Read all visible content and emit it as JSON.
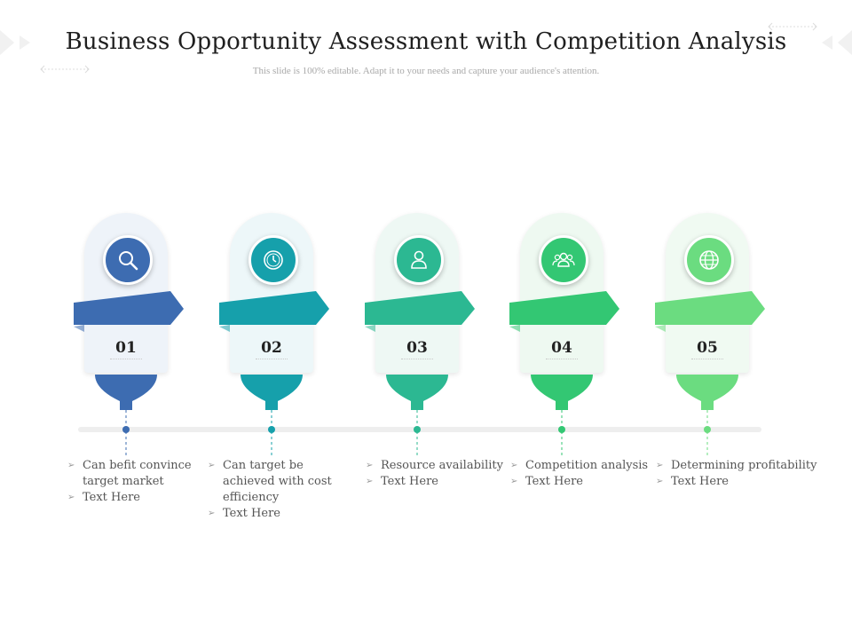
{
  "title": "Business Opportunity Assessment with Competition Analysis",
  "subtitle": "This slide is 100% editable. Adapt it to your needs and capture your audience's attention.",
  "steps": [
    {
      "number": "01",
      "icon": "magnifier-icon",
      "color": "#3d6cb1",
      "card_bg": "#eef3f9",
      "bullets": [
        "Can befit convince target market",
        "Text Here"
      ]
    },
    {
      "number": "02",
      "icon": "clock-icon",
      "color": "#16a0ab",
      "card_bg": "#edf7f9",
      "bullets": [
        "Can target be achieved with cost efficiency",
        "Text Here"
      ]
    },
    {
      "number": "03",
      "icon": "person-icon",
      "color": "#2cb892",
      "card_bg": "#eef8f4",
      "bullets": [
        "Resource availability",
        "Text Here"
      ]
    },
    {
      "number": "04",
      "icon": "group-icon",
      "color": "#33c773",
      "card_bg": "#eef9f1",
      "bullets": [
        "Competition analysis",
        "Text Here"
      ]
    },
    {
      "number": "05",
      "icon": "globe-icon",
      "color": "#6bdc80",
      "card_bg": "#f0faf2",
      "bullets": [
        "Determining profitability",
        "Text Here"
      ]
    }
  ]
}
